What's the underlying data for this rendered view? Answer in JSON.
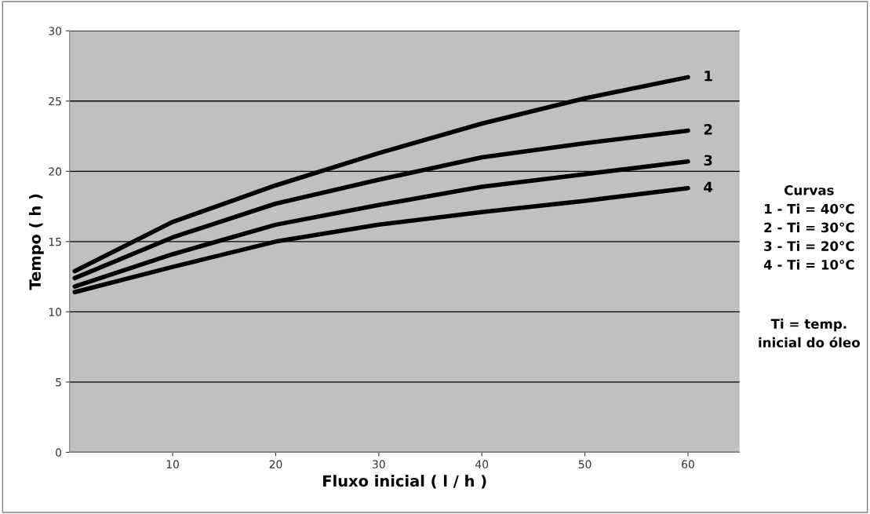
{
  "chart_data": {
    "type": "line",
    "xlabel": "Fluxo inicial ( l / h )",
    "ylabel": "Tempo ( h )",
    "x": [
      0.5,
      10,
      20,
      30,
      40,
      50,
      60
    ],
    "series": [
      {
        "name": "1",
        "color": "#000000",
        "values": [
          12.9,
          16.4,
          19.0,
          21.3,
          23.4,
          25.2,
          26.7
        ]
      },
      {
        "name": "2",
        "color": "#000000",
        "values": [
          12.4,
          15.3,
          17.7,
          19.4,
          21.0,
          22.0,
          22.9
        ]
      },
      {
        "name": "3",
        "color": "#000000",
        "values": [
          11.8,
          14.1,
          16.2,
          17.6,
          18.9,
          19.8,
          20.7
        ]
      },
      {
        "name": "4",
        "color": "#000000",
        "values": [
          11.4,
          13.2,
          15.0,
          16.2,
          17.1,
          17.9,
          18.8
        ]
      }
    ],
    "xlim": [
      0,
      65
    ],
    "xticks": [
      10,
      20,
      30,
      40,
      50,
      60
    ],
    "ylim": [
      0,
      30
    ],
    "yticks": [
      0,
      5,
      10,
      15,
      20,
      25,
      30
    ],
    "grid": "y",
    "annotations": [
      "Curvas\n1 - Ti = 40°C\n2 - Ti = 30°C\n3 - Ti = 20°C\n4 - Ti = 10°C",
      "Ti = temp.\ninicial do óleo"
    ]
  }
}
